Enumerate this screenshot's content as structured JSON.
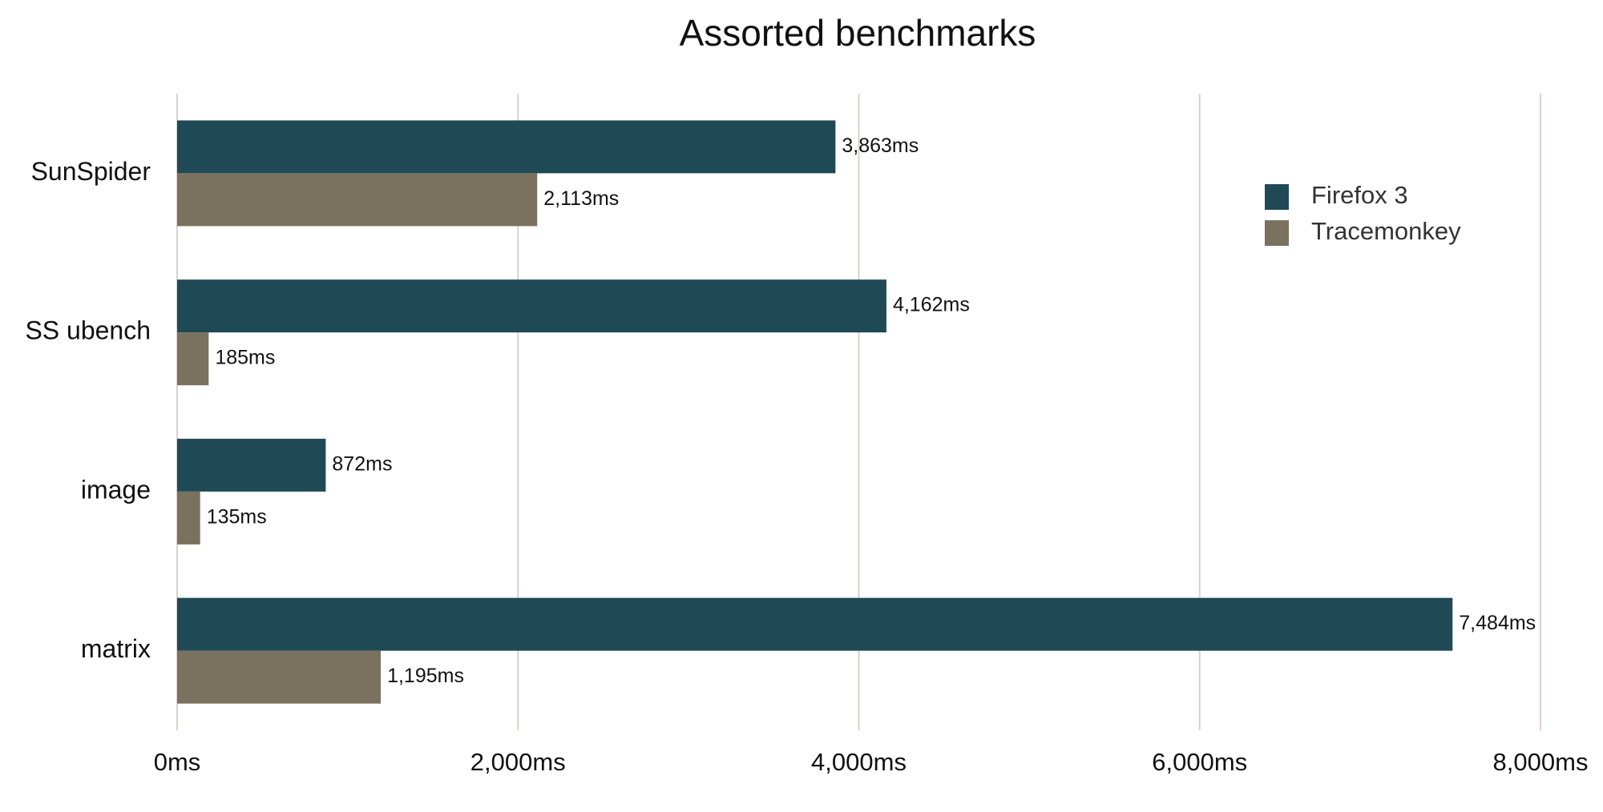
{
  "chart_data": {
    "type": "barh",
    "title": "Assorted benchmarks",
    "categories": [
      "SunSpider",
      "SS ubench",
      "image",
      "matrix"
    ],
    "series": [
      {
        "name": "Firefox 3",
        "color": "#1f4a55",
        "values": [
          3863,
          4162,
          872,
          7484
        ],
        "value_labels": [
          "3,863ms",
          "4,162ms",
          "872ms",
          "7,484ms"
        ]
      },
      {
        "name": "Tracemonkey",
        "color": "#7a725f",
        "values": [
          2113,
          185,
          135,
          1195
        ],
        "value_labels": [
          "2,113ms",
          "185ms",
          "135ms",
          "1,195ms"
        ]
      }
    ],
    "xlim": [
      0,
      8000
    ],
    "xticks": [
      {
        "value": 0,
        "label": "0ms"
      },
      {
        "value": 2000,
        "label": "2,000ms"
      },
      {
        "value": 4000,
        "label": "4,000ms"
      },
      {
        "value": 6000,
        "label": "6,000ms"
      },
      {
        "value": 8000,
        "label": "8,000ms"
      }
    ],
    "grid": true,
    "legend": "upper right"
  }
}
